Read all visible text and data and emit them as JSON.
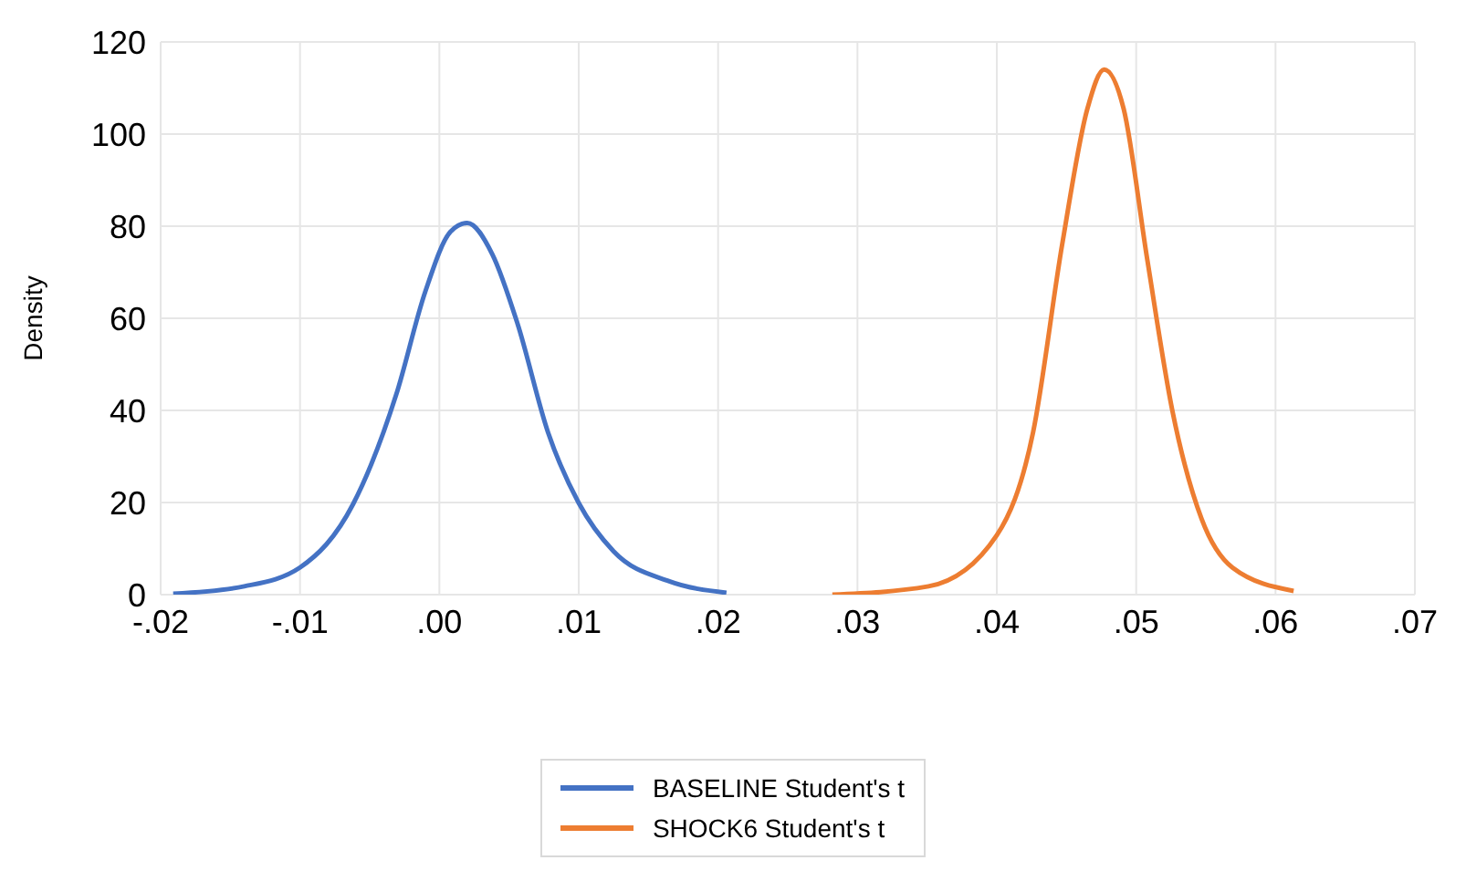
{
  "chart_data": {
    "type": "line",
    "ylabel": "Density",
    "xlim": [
      -0.02,
      0.07
    ],
    "xticks": [
      {
        "value": -0.02,
        "label": "-.02"
      },
      {
        "value": -0.01,
        "label": "-.01"
      },
      {
        "value": 0,
        "label": ".00"
      },
      {
        "value": 0.01,
        "label": ".01"
      },
      {
        "value": 0.02,
        "label": ".02"
      },
      {
        "value": 0.03,
        "label": ".03"
      },
      {
        "value": 0.04,
        "label": ".04"
      },
      {
        "value": 0.05,
        "label": ".05"
      },
      {
        "value": 0.06,
        "label": ".06"
      },
      {
        "value": 0.07,
        "label": ".07"
      }
    ],
    "ylim": [
      0,
      120
    ],
    "yticks": [
      0,
      20,
      40,
      60,
      80,
      100,
      120
    ],
    "grid": true,
    "legend": "bottom",
    "marker": "none",
    "line_style": "solid",
    "series": [
      {
        "name": "BASELINE Student's t",
        "color": "#4472c4",
        "x": [
          -0.0191,
          -0.014,
          -0.01,
          -0.0062,
          -0.0031,
          -0.001,
          0.0008,
          0.002,
          0.0038,
          0.0056,
          0.0078,
          0.01,
          0.0125,
          0.0165,
          0.0206
        ],
        "values": [
          0.2,
          1.8,
          5.9,
          19.6,
          43.4,
          65.9,
          78.8,
          80.7,
          73.9,
          58.9,
          35.2,
          19.9,
          9.4,
          2.9,
          0.4
        ]
      },
      {
        "name": "SHOCK6 Student's t",
        "color": "#ed7d31",
        "x": [
          0.0282,
          0.0351,
          0.04,
          0.0426,
          0.0447,
          0.0465,
          0.0477,
          0.0491,
          0.0508,
          0.0526,
          0.0547,
          0.0569,
          0.0613
        ],
        "values": [
          0,
          1.8,
          12.9,
          35.2,
          76.2,
          105.5,
          114,
          105.5,
          72.7,
          39.9,
          16.4,
          5.9,
          0.8
        ]
      }
    ]
  }
}
